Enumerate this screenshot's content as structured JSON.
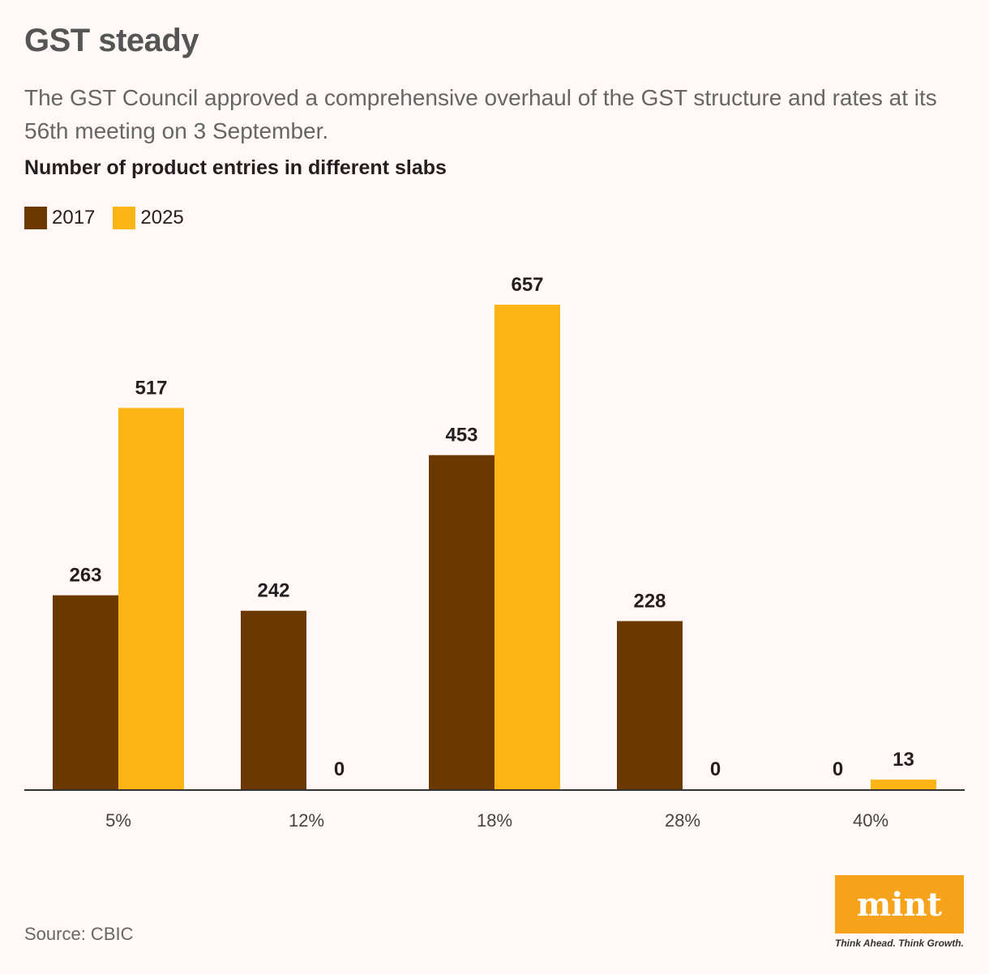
{
  "title": "GST steady",
  "subtitle": "The GST Council approved a comprehensive overhaul of the GST structure and rates at its 56th meeting on 3 September.",
  "source": "Source: CBIC",
  "logo": {
    "text": "mint",
    "tagline": "Think Ahead. Think Growth.",
    "color": "#f7a21b"
  },
  "chart_data": {
    "type": "bar",
    "title": "Number of product entries in different slabs",
    "categories": [
      "5%",
      "12%",
      "18%",
      "28%",
      "40%"
    ],
    "series": [
      {
        "name": "2017",
        "color": "#6b3800",
        "values": [
          263,
          242,
          453,
          228,
          0
        ]
      },
      {
        "name": "2025",
        "color": "#fdb515",
        "values": [
          517,
          0,
          657,
          0,
          13
        ]
      }
    ],
    "xlabel": "",
    "ylabel": "",
    "ylim": [
      0,
      657
    ],
    "grid": false,
    "legend": "top-left",
    "data_labels": true
  }
}
